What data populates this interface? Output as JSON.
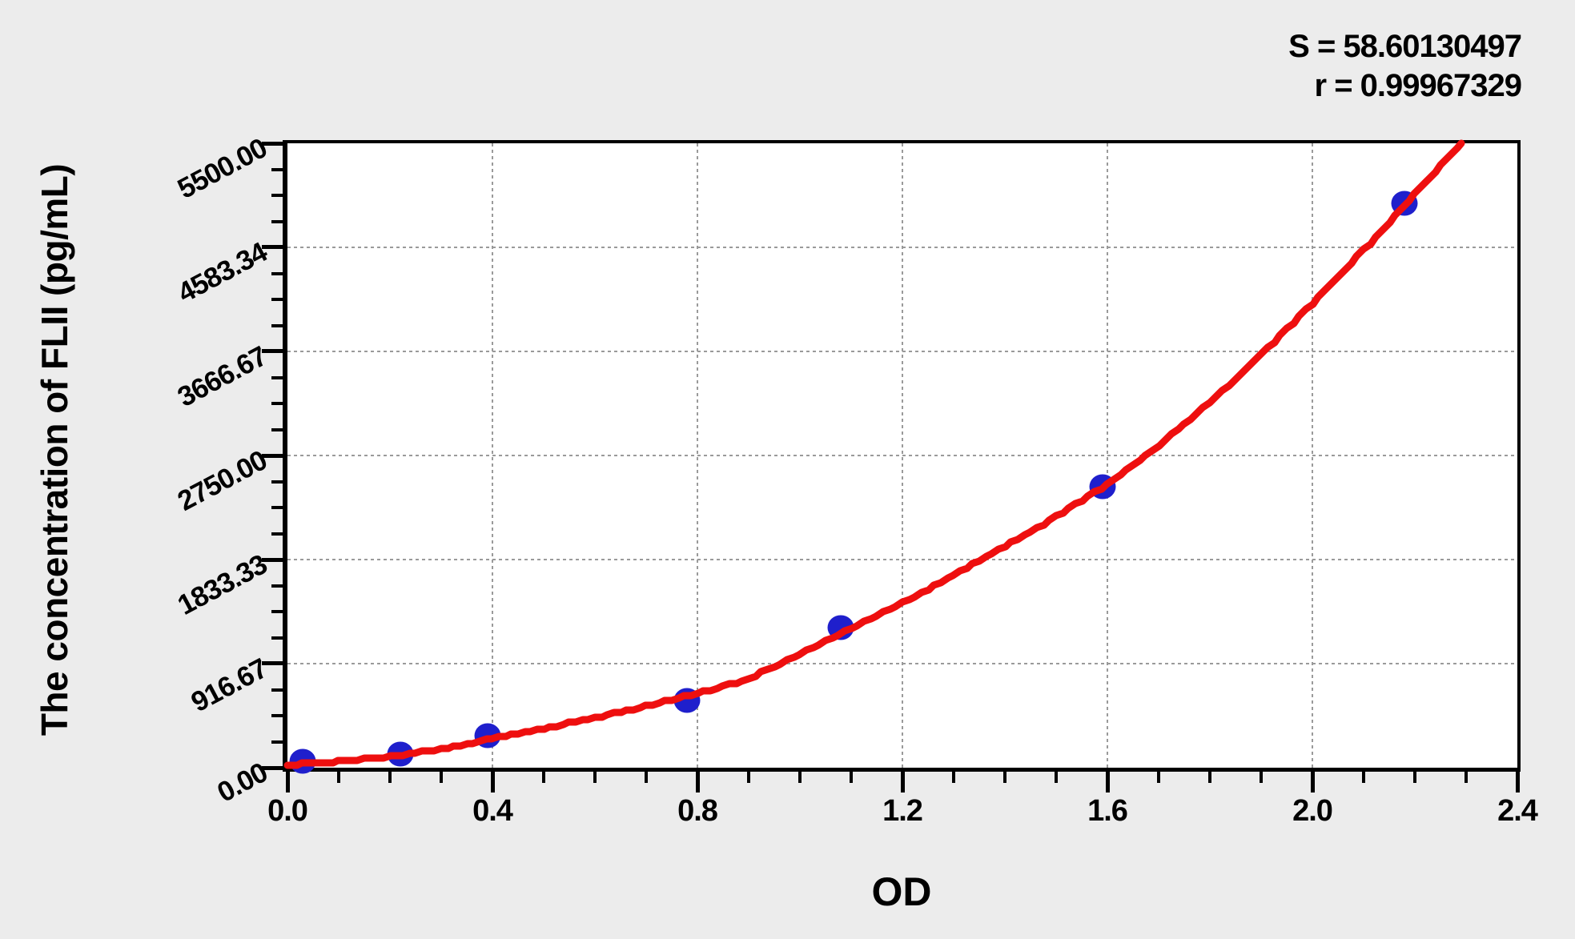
{
  "stats": {
    "s_label": "S = 58.60130497",
    "r_label": "r = 0.99967329"
  },
  "axes": {
    "x_title": "OD",
    "y_title": "The concentration of FLII (pg/mL)"
  },
  "colors": {
    "background": "#ececec",
    "plot_background": "#ffffff",
    "axis": "#000000",
    "grid": "#9a9a9a",
    "point": "#1f1fcc",
    "curve": "#ee0f0f",
    "text": "#000000"
  },
  "chart_data": {
    "type": "scatter",
    "title": "",
    "xlabel": "OD",
    "ylabel": "The concentration of FLII (pg/mL)",
    "xlim": [
      0,
      2.4
    ],
    "ylim": [
      0,
      5500
    ],
    "x_ticks": [
      0.0,
      0.4,
      0.8,
      1.2,
      1.6,
      2.0,
      2.4
    ],
    "x_tick_labels": [
      "0.0",
      "0.4",
      "0.8",
      "1.2",
      "1.6",
      "2.0",
      "2.4"
    ],
    "x_minor_step": 0.1,
    "y_ticks": [
      0,
      916.67,
      1833.33,
      2750.0,
      3666.67,
      4583.34,
      5500.0
    ],
    "y_tick_labels": [
      "0.00",
      "916.67",
      "1833.33",
      "2750.00",
      "3666.67",
      "4583.34",
      "5500.00"
    ],
    "y_minor_divisions": 4,
    "grid": "dashed-at-major-ticks",
    "legend": "none",
    "S": "58.60130497",
    "r": "0.99967329",
    "points": [
      [
        0.03,
        56
      ],
      [
        0.22,
        119
      ],
      [
        0.39,
        281
      ],
      [
        0.78,
        589
      ],
      [
        1.08,
        1235
      ],
      [
        1.59,
        2476
      ],
      [
        2.18,
        4973
      ]
    ],
    "fit_curve": {
      "type": "regression-curve",
      "samples": [
        [
          0.0,
          25
        ],
        [
          0.1,
          55
        ],
        [
          0.2,
          100
        ],
        [
          0.3,
          165
        ],
        [
          0.4,
          255
        ],
        [
          0.5,
          345
        ],
        [
          0.6,
          440
        ],
        [
          0.7,
          545
        ],
        [
          0.8,
          655
        ],
        [
          0.9,
          790
        ],
        [
          1.0,
          1000
        ],
        [
          1.1,
          1230
        ],
        [
          1.2,
          1450
        ],
        [
          1.3,
          1695
        ],
        [
          1.4,
          1950
        ],
        [
          1.5,
          2215
        ],
        [
          1.6,
          2500
        ],
        [
          1.7,
          2840
        ],
        [
          1.8,
          3220
        ],
        [
          1.9,
          3640
        ],
        [
          2.0,
          4090
        ],
        [
          2.1,
          4560
        ],
        [
          2.2,
          5060
        ],
        [
          2.29,
          5500
        ]
      ]
    }
  }
}
